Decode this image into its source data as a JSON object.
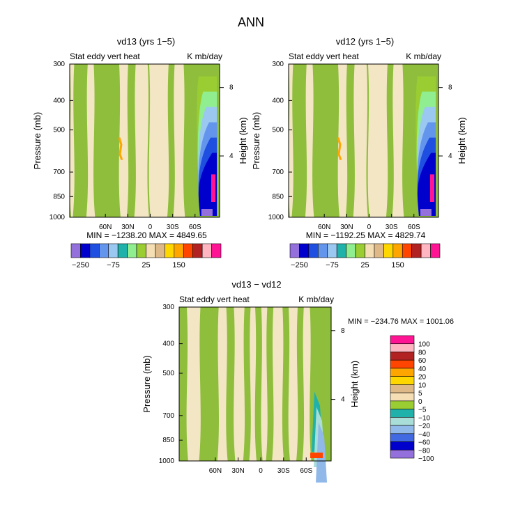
{
  "page_title": "ANN",
  "chart_data": [
    {
      "type": "contour",
      "id": "p1",
      "title": "vd13 (yrs 1−5)",
      "variable": "Stat eddy vert heat",
      "units": "K mb/day",
      "ylabel": "Pressure (mb)",
      "y2label": "Height (km)",
      "pressure_ticks": [
        "300",
        "400",
        "500",
        "700",
        "850",
        "1000"
      ],
      "height_ticks": [
        "8",
        "4"
      ],
      "lat_ticks": [
        "60N",
        "30N",
        "0",
        "30S",
        "60S"
      ],
      "min_max_text": "MIN = −1238.20   MAX = 4849.65",
      "colorbar_labels": [
        "−250",
        "−75",
        "25",
        "150"
      ]
    },
    {
      "type": "contour",
      "id": "p2",
      "title": "vd12 (yrs 1−5)",
      "variable": "Stat eddy vert heat",
      "units": "K mb/day",
      "ylabel": "Pressure (mb)",
      "y2label": "Height (km)",
      "pressure_ticks": [
        "300",
        "400",
        "500",
        "700",
        "850",
        "1000"
      ],
      "height_ticks": [
        "8",
        "4"
      ],
      "lat_ticks": [
        "60N",
        "30N",
        "0",
        "30S",
        "60S"
      ],
      "min_max_text": "MIN = −1192.25   MAX = 4829.74",
      "colorbar_labels": [
        "−250",
        "−75",
        "25",
        "150"
      ]
    },
    {
      "type": "contour",
      "id": "p3",
      "title": "vd13 − vd12",
      "variable": "Stat eddy vert heat",
      "units": "K mb/day",
      "ylabel": "Pressure (mb)",
      "y2label": "Height (km)",
      "pressure_ticks": [
        "300",
        "400",
        "500",
        "700",
        "850",
        "1000"
      ],
      "height_ticks": [
        "8",
        "4"
      ],
      "lat_ticks": [
        "60N",
        "30N",
        "0",
        "30S",
        "60S"
      ],
      "min_max_text": "MIN = −234.76   MAX = 1001.06",
      "colorbar_labels": [
        "100",
        "80",
        "60",
        "40",
        "20",
        "10",
        "5",
        "0",
        "−5",
        "−10",
        "−20",
        "−40",
        "−60",
        "−80",
        "−100"
      ]
    }
  ],
  "colors": {
    "green": "#8fbe3c",
    "tan": "#f3e6c4",
    "frame": "#000000",
    "horizontal_scale": [
      "#9370db",
      "#0000cd",
      "#1e4fe0",
      "#6495ed",
      "#9ac8f0",
      "#20b2aa",
      "#90ee90",
      "#9acd32",
      "#f5deb3",
      "#deb887",
      "#ffd700",
      "#ffa500",
      "#ff4500",
      "#b22222",
      "#ffb6c1",
      "#ff1493"
    ],
    "vertical_scale": [
      "#ff1493",
      "#ffb6c1",
      "#b22222",
      "#ff4500",
      "#ffa500",
      "#ffd700",
      "#deb887",
      "#f5deb3",
      "#9acd32",
      "#20b2aa",
      "#a9ded8",
      "#90b8e8",
      "#4169e1",
      "#0000cd",
      "#9370db"
    ]
  }
}
